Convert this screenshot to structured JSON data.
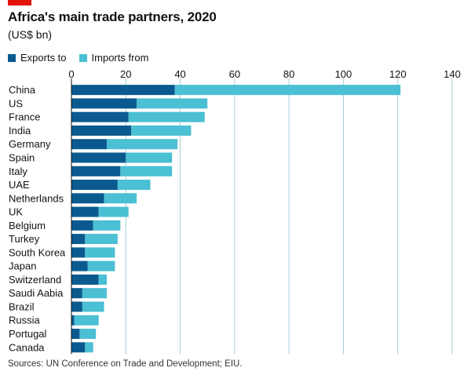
{
  "title": "Africa's main trade partners, 2020",
  "subtitle": "(US$ bn)",
  "source": "Sources: UN Conference on Trade and Development; EIU.",
  "colors": {
    "exports": "#0a5a8f",
    "imports": "#4bbfd3",
    "brand_red": "#e3120b",
    "grid": "#9fcfd6"
  },
  "chart_data": {
    "type": "bar",
    "orientation": "horizontal",
    "stacked": true,
    "title": "Africa's main trade partners, 2020",
    "subtitle": "(US$ bn)",
    "xlim": [
      0,
      140
    ],
    "xticks": [
      0,
      20,
      40,
      60,
      80,
      100,
      120,
      140
    ],
    "grid": true,
    "legend_position": "top-left",
    "categories": [
      "China",
      "US",
      "France",
      "India",
      "Germany",
      "Spain",
      "Italy",
      "UAE",
      "Netherlands",
      "UK",
      "Belgium",
      "Turkey",
      "South Korea",
      "Japan",
      "Switzerland",
      "Saudi Aabia",
      "Brazil",
      "Russia",
      "Portugal",
      "Canada"
    ],
    "series": [
      {
        "name": "Exports to",
        "color": "#0a5a8f",
        "values": [
          38,
          24,
          21,
          22,
          13,
          20,
          18,
          17,
          12,
          10,
          8,
          5,
          5,
          6,
          10,
          4,
          4,
          1,
          3,
          5
        ]
      },
      {
        "name": "Imports from",
        "color": "#4bbfd3",
        "values": [
          83,
          26,
          28,
          22,
          26,
          17,
          19,
          12,
          12,
          11,
          10,
          12,
          11,
          10,
          3,
          9,
          8,
          9,
          6,
          3
        ]
      }
    ]
  }
}
